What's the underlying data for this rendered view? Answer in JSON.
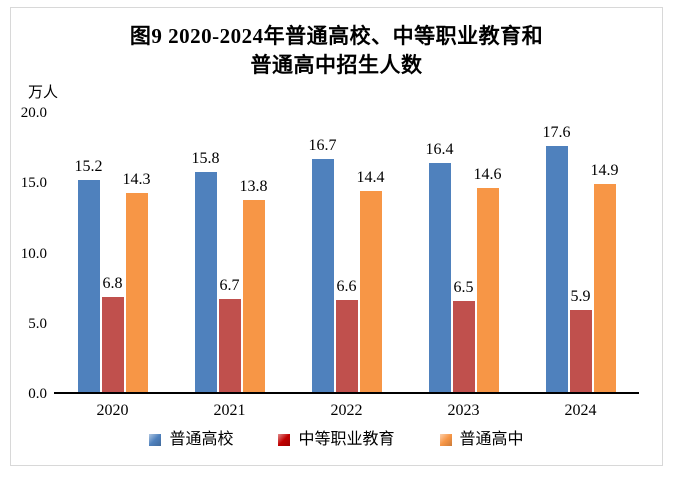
{
  "figure": {
    "title_line1": "图9  2020-2024年普通高校、中等职业教育和",
    "title_line2": "普通高中招生人数",
    "unit_label": "万人"
  },
  "chart_data": {
    "type": "bar",
    "title": "图9 2020-2024年普通高校、中等职业教育和普通高中招生人数",
    "xlabel": "",
    "ylabel": "万人",
    "ylim": [
      0,
      20
    ],
    "ytick_labels_top_to_bottom": [
      "20.0",
      "15.0",
      "10.0",
      "5.0",
      "0.0"
    ],
    "grid": false,
    "legend_position": "bottom",
    "value_labels": "outside-end",
    "categories": [
      "2020",
      "2021",
      "2022",
      "2023",
      "2024"
    ],
    "series": [
      {
        "key": "regular-higher-education",
        "name": "普通高校",
        "color": "#4F81BD",
        "legend_color": "#4F81BD",
        "values": [
          15.2,
          15.8,
          16.7,
          16.4,
          17.6
        ]
      },
      {
        "key": "secondary-vocational-education",
        "name": "中等职业教育",
        "color": "#C0504D",
        "legend_color": "#C00000",
        "values": [
          6.8,
          6.7,
          6.6,
          6.5,
          5.9
        ]
      },
      {
        "key": "regular-high-school",
        "name": "普通高中",
        "color": "#F79646",
        "legend_color": "#F79646",
        "values": [
          14.3,
          13.8,
          14.4,
          14.6,
          14.9
        ]
      }
    ],
    "colors": {
      "axis_line": "#000000",
      "frame_border": "#D8D8D8",
      "text": "#000000",
      "background": "#FFFFFF"
    }
  }
}
